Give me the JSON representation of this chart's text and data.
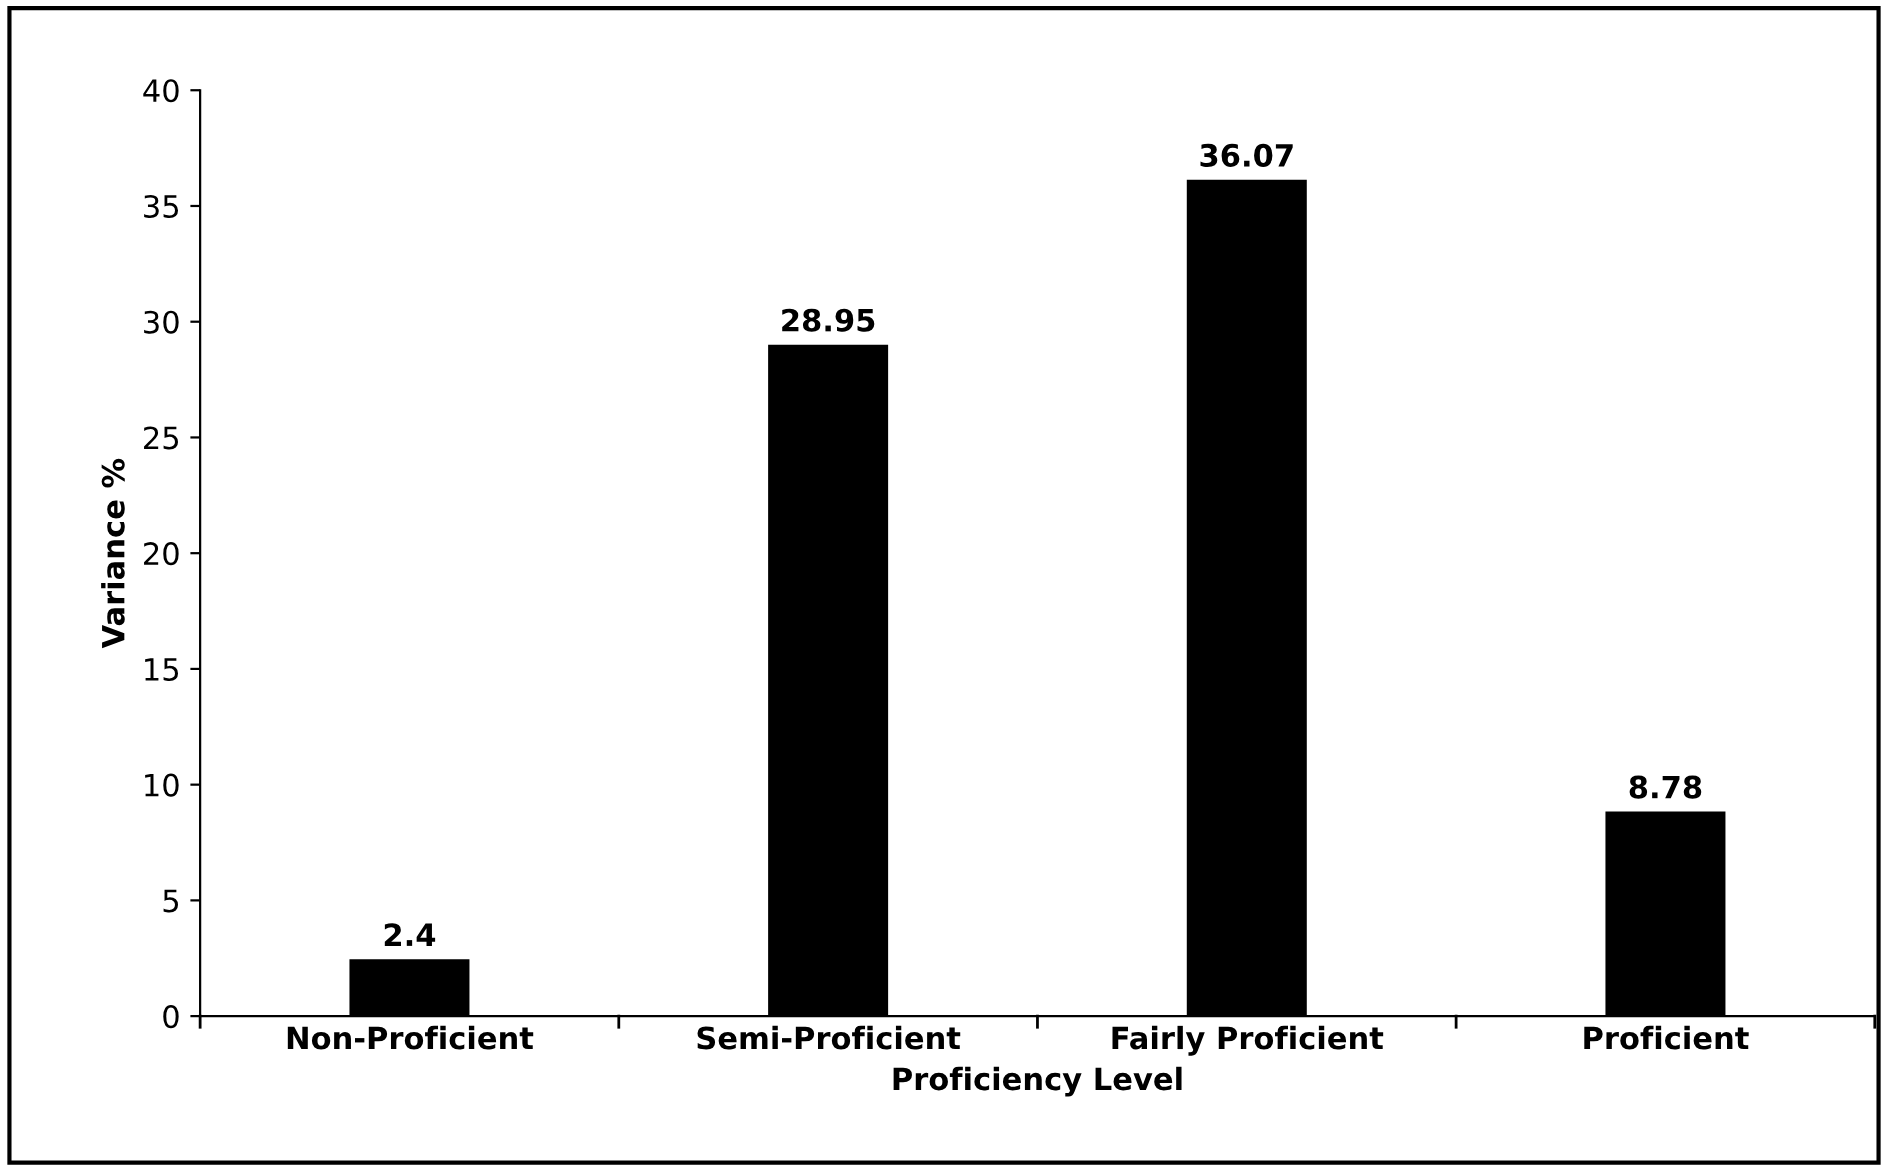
{
  "chart_data": {
    "type": "bar",
    "xlabel": "Proficiency Level",
    "ylabel": "Variance %",
    "categories": [
      "Non-Proficient",
      "Semi-Proficient",
      "Fairly Proficient",
      "Proficient"
    ],
    "values": [
      2.4,
      28.95,
      36.07,
      8.78
    ],
    "color": "#000000",
    "ylim": [
      0,
      40
    ],
    "yticks": [
      0,
      5,
      10,
      15,
      20,
      25,
      30,
      35,
      40
    ],
    "grid": false,
    "data_labels": true
  }
}
